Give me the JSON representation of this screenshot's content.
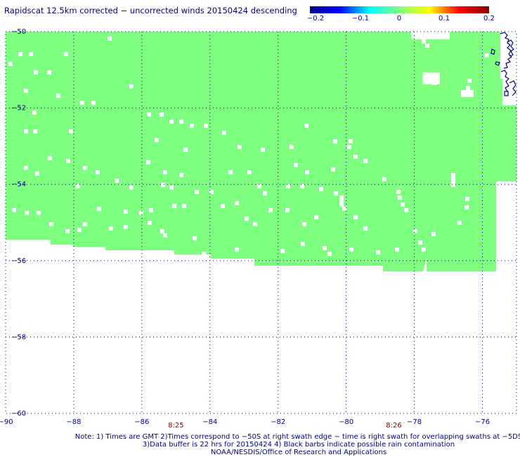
{
  "title": "Rapidscat 12.5km corrected − uncorrected winds 20150424 descending",
  "colorbar": {
    "labels": [
      "−0.2",
      "−0.1",
      "0",
      "0.1",
      "0.2"
    ],
    "colors": [
      "#00008b",
      "#0000ff",
      "#00ffff",
      "#7fff7f",
      "#ffff00",
      "#ff0000",
      "#8b0000"
    ]
  },
  "map": {
    "lon_range": [
      -90,
      -75
    ],
    "lat_range": [
      -50,
      -60
    ],
    "lon_labels": [
      "−90",
      "−88",
      "−86",
      "−84",
      "−82",
      "−80",
      "−78",
      "−76"
    ],
    "lat_labels": [
      "−50",
      "−52",
      "−54",
      "−56",
      "−58",
      "−60"
    ],
    "time_labels": [
      {
        "text": "8:25",
        "lon": -85
      },
      {
        "text": "8:26",
        "lon": -78.6
      }
    ],
    "swath_color": "#7fff7f",
    "coast_color": "#000080",
    "time_color": "#8b0000"
  },
  "notes": {
    "line1": "Note: 1) Times are GMT 2)Times correspond to −50S at right swath edge − time is right swath for overlapping swaths at −5DS",
    "line2": "3)Data buffer is 22 hrs for 20150424 4) Black barbs indicate possible rain contamination",
    "line3": "NOAA/NESDIS/Office of Research and Applications"
  }
}
